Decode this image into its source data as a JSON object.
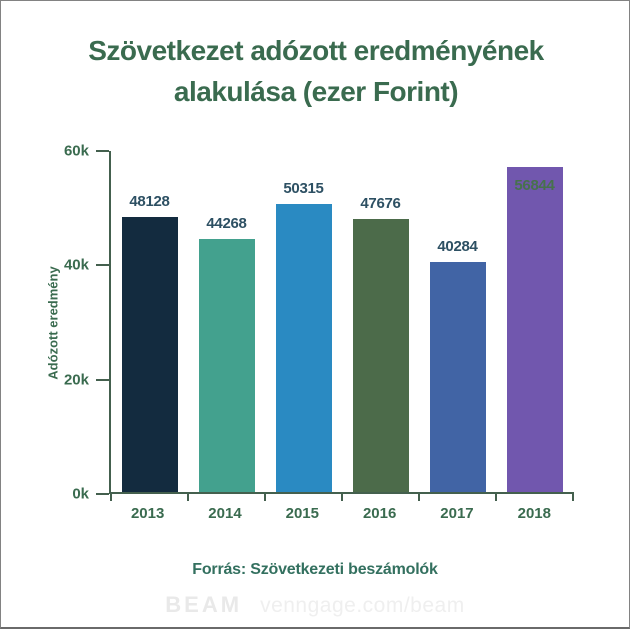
{
  "title": "Szövetkezet adózott eredményének alakulása (ezer Forint)",
  "source_note": "Forrás: Szövetkezeti beszámolók",
  "watermark": {
    "logo": "BEAM",
    "url_text": "venngage.com/beam"
  },
  "chart_data": {
    "type": "bar",
    "title": "Szövetkezet adózott eredményének alakulása (ezer Forint)",
    "categories": [
      "2013",
      "2014",
      "2015",
      "2016",
      "2017",
      "2018"
    ],
    "values": [
      48128,
      44268,
      50315,
      47676,
      40284,
      56844
    ],
    "bar_colors": [
      "#132b3f",
      "#43a18e",
      "#2a8ac2",
      "#4c6b4a",
      "#4164a5",
      "#7157ae"
    ],
    "xlabel": "",
    "ylabel": "Adózott eredmény",
    "ylim": [
      0,
      60000
    ],
    "yticks": [
      {
        "value": 0,
        "label": "0k"
      },
      {
        "value": 20000,
        "label": "20k"
      },
      {
        "value": 40000,
        "label": "40k"
      },
      {
        "value": 60000,
        "label": "60k"
      }
    ],
    "grid": false,
    "legend": false,
    "value_labels": true
  },
  "colors": {
    "title": "#3a6b4f",
    "axis": "#44604e",
    "tick_label": "#3a6b4f",
    "value_label": "#2d5063",
    "value_label_inside": "#47714d",
    "source": "#33705f",
    "watermark": "#e9e9e9",
    "frame_border": "#828282"
  }
}
